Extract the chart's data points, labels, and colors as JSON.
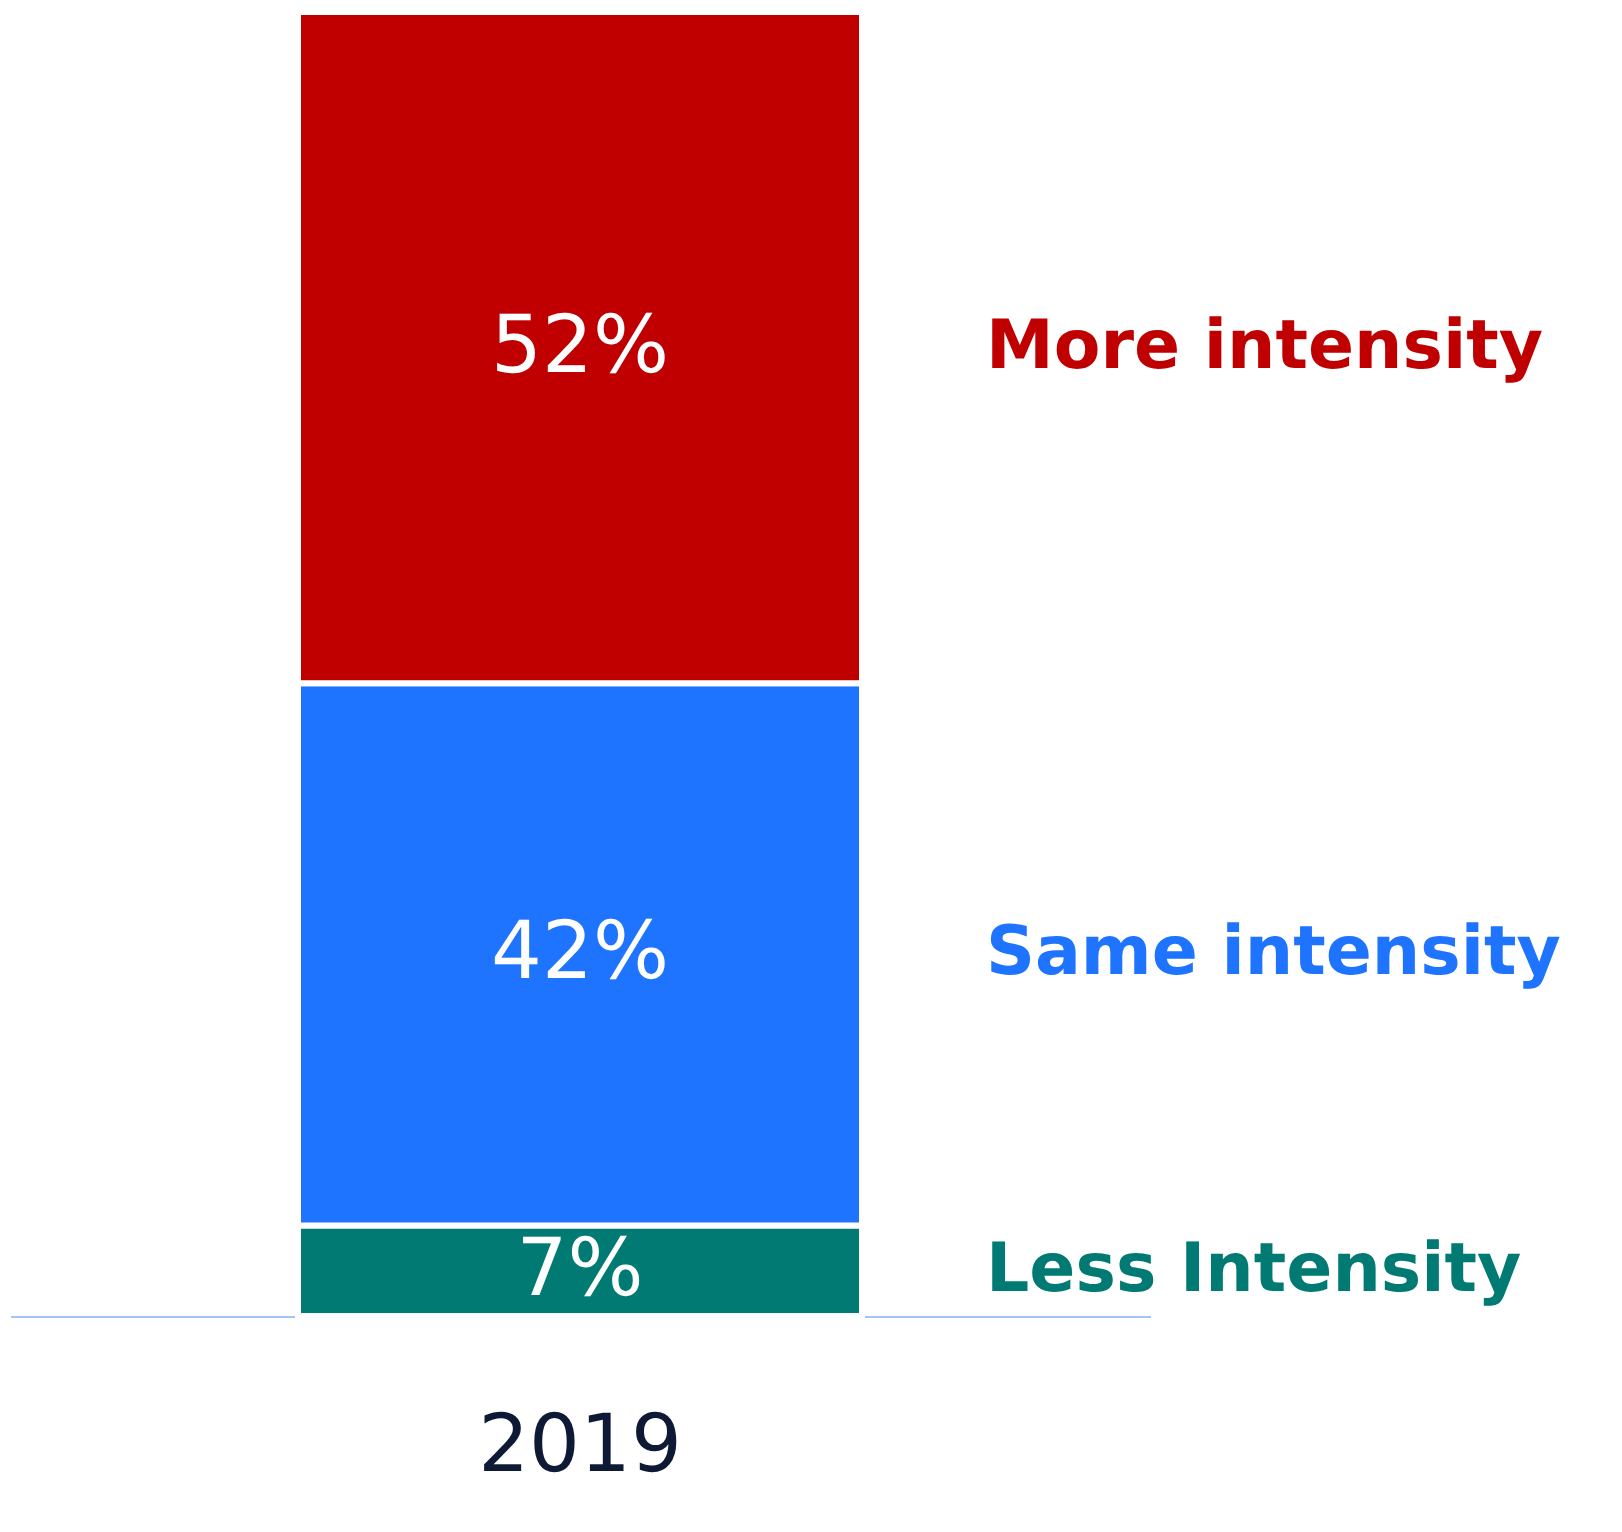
{
  "chart_data": {
    "type": "bar",
    "stacked": true,
    "categories": [
      "2019"
    ],
    "legend": false,
    "series": [
      {
        "name": "Less Intensity",
        "color": "#007a73",
        "values": [
          7
        ],
        "value_labels": [
          "7%"
        ]
      },
      {
        "name": "Same intensity",
        "color": "#1e73ff",
        "values": [
          42
        ],
        "value_labels": [
          "42%"
        ]
      },
      {
        "name": "More intensity",
        "color": "#c00000",
        "values": [
          52
        ],
        "value_labels": [
          "52%"
        ]
      }
    ]
  }
}
